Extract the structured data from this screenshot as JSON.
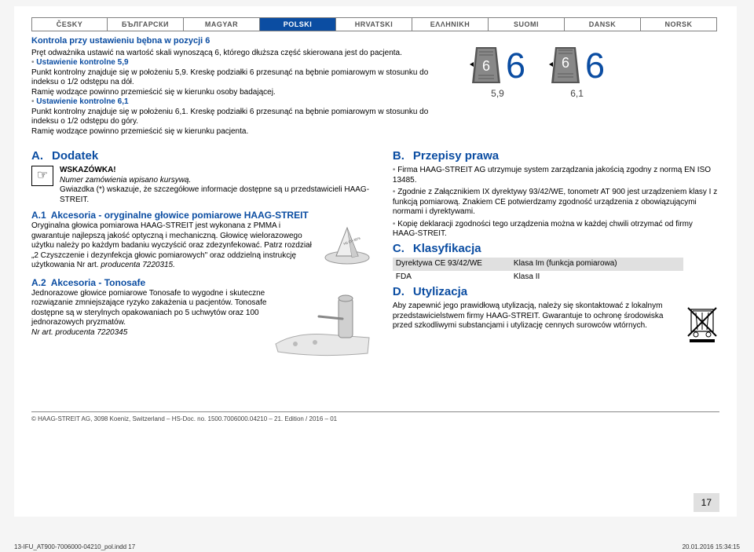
{
  "langs": [
    "ČESKY",
    "БЪЛГАРСКИ",
    "MAGYAR",
    "POLSKI",
    "HRVATSKI",
    "ΕΛΛΗΝΙΚΗ",
    "SUOMI",
    "DANSK",
    "NORSK"
  ],
  "active_lang_index": 3,
  "top": {
    "title": "Kontrola przy ustawieniu bębna w pozycji 6",
    "l1": "Pręt odważnika ustawić na wartość skali wynoszącą 6, którego dłuższa część skierowana jest do pacjenta.",
    "b1": "Ustawienie kontrolne 5,9",
    "l2a": "Punkt kontrolny znajduje się w położeniu 5,9. Kreskę podziałki 6 przesunąć na bębnie pomiarowym w stosunku do indeksu o 1/2 odstępu na dół.",
    "l2b": "Ramię wodzące powinno przemieścić się w kierunku osoby badającej.",
    "b2": "Ustawienie kontrolne 6,1",
    "l3a": "Punkt kontrolny znajduje się w położeniu 6,1. Kreskę podziałki 6 przesunąć na bębnie pomiarowym w stosunku do indeksu o 1/2 odstępu do góry.",
    "l3b": "Ramię wodzące powinno przemieścić się w kierunku pacjenta."
  },
  "dials": {
    "v1": "6",
    "c1": "5,9",
    "v2": "6",
    "c2": "6,1"
  },
  "A": {
    "head": "Dodatek",
    "hint_t": "WSKAZÓWKA!",
    "hint_l1": "Numer zamówienia wpisano kursywą.",
    "hint_l2": "Gwiazdka (*) wskazuje, że szczegółowe informacje dostępne są u przedstawicieli HAAG-STREIT.",
    "a1_head": "Akcesoria - oryginalne głowice pomiarowe HAAG-STREIT",
    "a1_body": "Oryginalna głowica pomiarowa HAAG-STREIT jest wykonana z PMMA i gwarantuje najlepszą jakość optyczną i mechaniczną. Głowicę wielorazowego użytku należy po każdym badaniu wyczyścić oraz zdezynfekować. Patrz rozdział „2 Czyszczenie i dezynfekcja głowic pomiarowych\" oraz oddzielną instrukcję użytkowania Nr art. ",
    "a1_prod": "producenta 7220315.",
    "a2_head": "Akcesoria - Tonosafe",
    "a2_body": "Jednorazowe głowice pomiarowe Tonosafe to wygodne i skuteczne rozwiązanie zmniejszające ryzyko zakażenia u pacjentów. Tonosafe dostępne są w sterylnych opakowaniach po 5 uchwytów oraz 100 jednorazowych pryzmatów.",
    "a2_prod": "Nr art. producenta 7220345"
  },
  "B": {
    "head": "Przepisy prawa",
    "i1": "Firma HAAG-STREIT AG utrzymuje system zarządzania jakością zgodny z normą EN ISO 13485.",
    "i2": "Zgodnie z Załącznikiem IX dyrektywy 93/42/WE, tonometr AT 900 jest urządzeniem klasy I z funkcją pomiarową. Znakiem CE potwierdzamy zgodność urządzenia z obowiązującymi normami i dyrektywami.",
    "i3": "Kopię deklaracji zgodności tego urządzenia można w każdej chwili otrzymać od firmy HAAG-STREIT."
  },
  "C": {
    "head": "Klasyfikacja",
    "r1c1": "Dyrektywa CE 93/42/WE",
    "r1c2": "Klasa Im (funkcja pomiarowa)",
    "r2c1": "FDA",
    "r2c2": "Klasa II"
  },
  "D": {
    "head": "Utylizacja",
    "body": "Aby zapewnić jego prawidłową utylizacją, należy się skontaktować z lokalnym przedstawicielstwem firmy HAAG-STREIT. Gwarantuje to ochronę środowiska przed szkodliwymi substancjami i utylizację cennych surowców wtórnych."
  },
  "footer": "© HAAG-STREIT AG, 3098 Koeniz, Switzerland – HS-Doc. no. 1500.7006000.04210 – 21. Edition / 2016 – 01",
  "page_num": "17",
  "file_l": "13-IFU_AT900-7006000-04210_pol.indd   17",
  "file_r": "20.01.2016   15:34:15"
}
